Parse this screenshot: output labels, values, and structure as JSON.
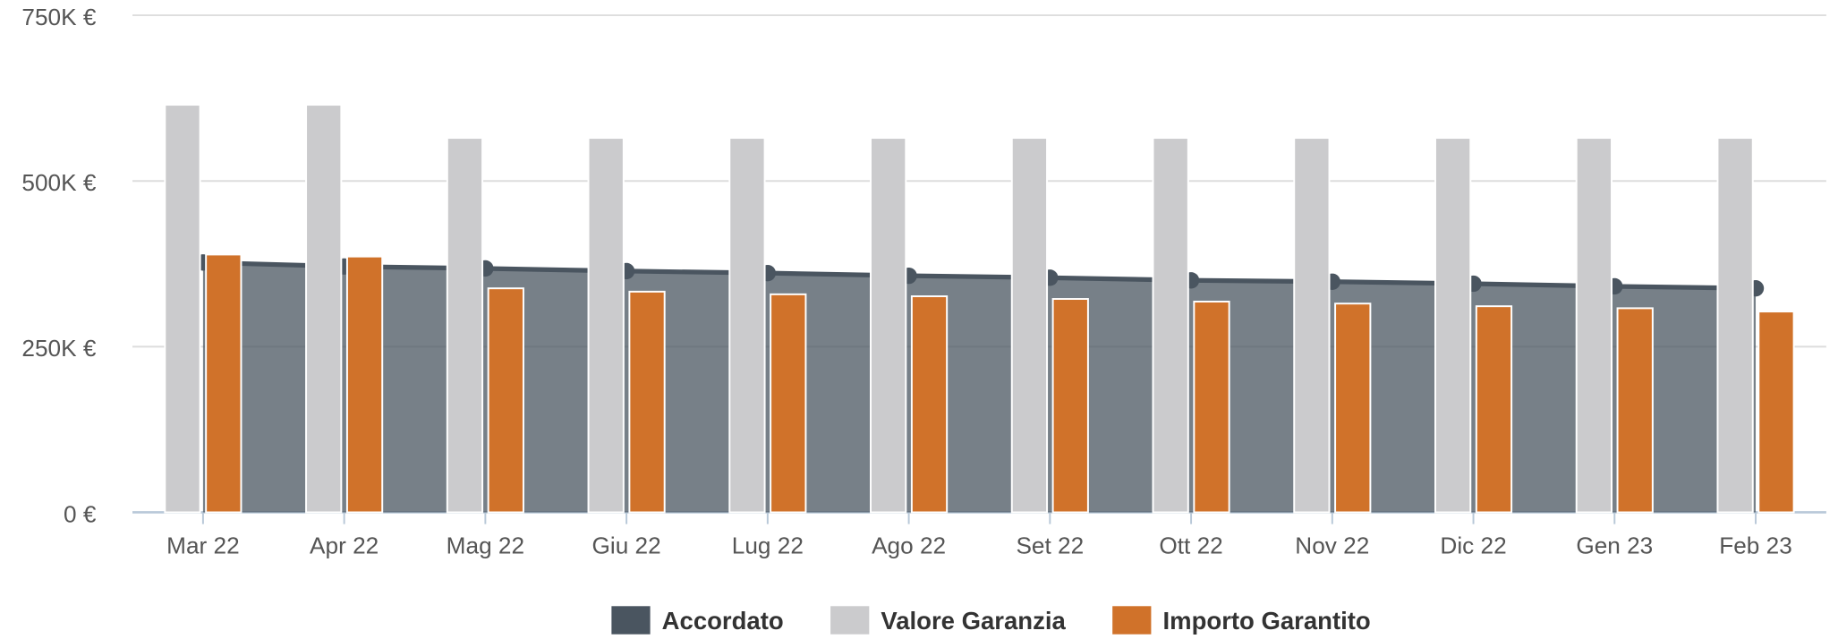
{
  "chart_data": {
    "type": "bar",
    "categories": [
      "Mar 22",
      "Apr 22",
      "Mag 22",
      "Giu 22",
      "Lug 22",
      "Ago 22",
      "Set 22",
      "Ott 22",
      "Nov 22",
      "Dic 22",
      "Gen 23",
      "Feb 23"
    ],
    "series": [
      {
        "name": "Accordato",
        "type": "area",
        "color": "#4a5560",
        "values": [
          377000,
          371000,
          368000,
          364000,
          361000,
          357000,
          354000,
          350000,
          348000,
          345000,
          341000,
          338000
        ]
      },
      {
        "name": "Valore Garanzia",
        "color": "#cbcbcd",
        "values": [
          615000,
          615000,
          565000,
          565000,
          565000,
          565000,
          565000,
          565000,
          565000,
          565000,
          565000,
          565000
        ]
      },
      {
        "name": "Importo Garantito",
        "color": "#d0722a",
        "values": [
          389000,
          386000,
          338000,
          333000,
          329000,
          326000,
          322000,
          318000,
          315000,
          311000,
          308000,
          303000
        ]
      }
    ],
    "ylim": [
      0,
      750000
    ],
    "yticks": [
      {
        "value": 0,
        "label": "0 €"
      },
      {
        "value": 250000,
        "label": "250K €"
      },
      {
        "value": 500000,
        "label": "500K €"
      },
      {
        "value": 750000,
        "label": "750K €"
      }
    ],
    "grid": true,
    "legend": "bottom"
  }
}
